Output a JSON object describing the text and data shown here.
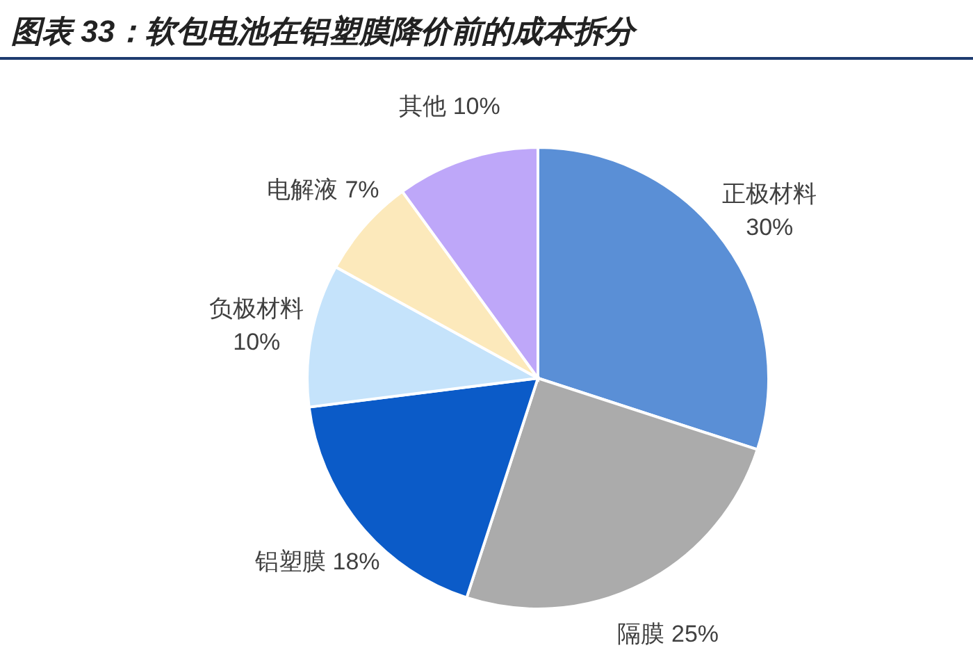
{
  "chart_data": {
    "type": "pie",
    "title": "图表 33：软包电池在铝塑膜降价前的成本拆分",
    "categories": [
      "正极材料",
      "隔膜",
      "铝塑膜",
      "负极材料",
      "电解液",
      "其他"
    ],
    "values": [
      30,
      25,
      18,
      10,
      7,
      10
    ],
    "colors": [
      "#5a8fd6",
      "#ababab",
      "#0b5bc8",
      "#c5e3fb",
      "#fce9bb",
      "#bea7f9"
    ],
    "value_labels": [
      "30%",
      "25%",
      "18%",
      "10%",
      "7%",
      "10%"
    ]
  }
}
